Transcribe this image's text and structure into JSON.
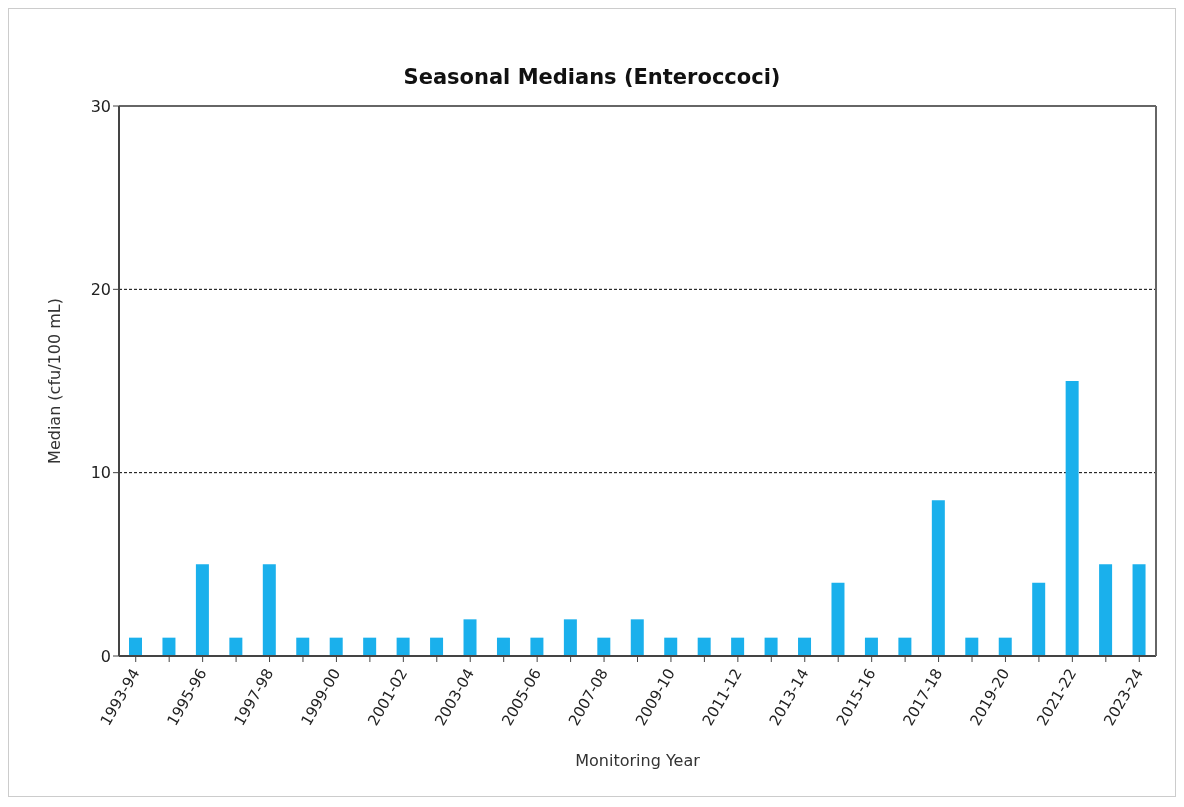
{
  "chart_data": {
    "type": "bar",
    "title": "Seasonal Medians (Enteroccoci)",
    "xlabel": "Monitoring Year",
    "ylabel": "Median (cfu/100 mL)",
    "categories": [
      "1993-94",
      null,
      "1995-96",
      null,
      "1997-98",
      null,
      "1999-00",
      null,
      "2001-02",
      null,
      "2003-04",
      null,
      "2005-06",
      null,
      "2007-08",
      null,
      "2009-10",
      null,
      "2011-12",
      null,
      "2013-14",
      null,
      "2015-16",
      null,
      "2017-18",
      null,
      "2019-20",
      null,
      "2021-22",
      null,
      "2023-24"
    ],
    "values": [
      1,
      1,
      5,
      1,
      5,
      1,
      1,
      1,
      1,
      1,
      2,
      1,
      1,
      2,
      1,
      2,
      1,
      1,
      1,
      1,
      1,
      4,
      1,
      1,
      8.5,
      1,
      1,
      4,
      15,
      5,
      5
    ],
    "color": "#1ab0ec",
    "ylim": [
      0,
      30
    ],
    "yticks": [
      0,
      10,
      20,
      30
    ],
    "grid": "y"
  }
}
